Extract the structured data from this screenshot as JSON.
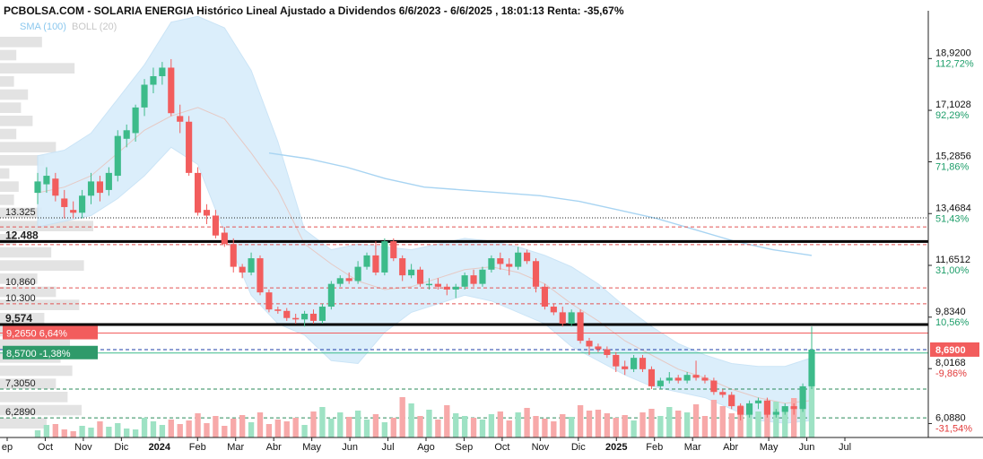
{
  "header": {
    "title": "PCBOLSA.COM - SOLARIA ENERGIA Histórico Lineal Ajustado a Dividendos 6/6/2023 - 6/6/2025 , 18:01:13 Renta: -35,67%"
  },
  "legend": {
    "sma": "SMA (100)",
    "boll": "BOLL (20)"
  },
  "colors": {
    "up": "#3dbb8a",
    "down": "#f25d5d",
    "band_fill": "#d8edfb",
    "sma": "#a8d4f2",
    "axis_green": "#1e9e6a",
    "axis_red": "#e23b3b",
    "dashed_red": "#e25555",
    "dashed_green": "#2a8a5a",
    "dashed_blue": "#1f3fa8",
    "volume_hist": "#e3e3e3"
  },
  "chart_data": {
    "type": "candlestick",
    "title": "PCBOLSA.COM - SOLARIA ENERGIA Histórico Lineal Ajustado a Dividendos 6/6/2023 - 6/6/2025 , 18:01:13 Renta: -35,67%",
    "ylim": [
      5.6,
      20.6
    ],
    "x_labels": [
      {
        "label": "ep",
        "bold": false
      },
      {
        "label": "Oct",
        "bold": false
      },
      {
        "label": "Nov",
        "bold": false
      },
      {
        "label": "Dic",
        "bold": false
      },
      {
        "label": "2024",
        "bold": true
      },
      {
        "label": "Feb",
        "bold": false
      },
      {
        "label": "Mar",
        "bold": false
      },
      {
        "label": "Abr",
        "bold": false
      },
      {
        "label": "May",
        "bold": false
      },
      {
        "label": "Jun",
        "bold": false
      },
      {
        "label": "Jul",
        "bold": false
      },
      {
        "label": "Ago",
        "bold": false
      },
      {
        "label": "Sep",
        "bold": false
      },
      {
        "label": "Oct",
        "bold": false
      },
      {
        "label": "Nov",
        "bold": false
      },
      {
        "label": "Dic",
        "bold": false
      },
      {
        "label": "2025",
        "bold": true
      },
      {
        "label": "Feb",
        "bold": false
      },
      {
        "label": "Mar",
        "bold": false
      },
      {
        "label": "Abr",
        "bold": false
      },
      {
        "label": "May",
        "bold": false
      },
      {
        "label": "Jun",
        "bold": false
      },
      {
        "label": "Jul",
        "bold": false
      }
    ],
    "right_axis": [
      {
        "price": "18,9200",
        "pct": "112,72%",
        "value": 18.92,
        "pct_color": "green"
      },
      {
        "price": "17,1028",
        "pct": "92,29%",
        "value": 17.1,
        "pct_color": "green"
      },
      {
        "price": "15,2856",
        "pct": "71,86%",
        "value": 15.29,
        "pct_color": "green"
      },
      {
        "price": "13,4684",
        "pct": "51,43%",
        "value": 13.47,
        "pct_color": "green"
      },
      {
        "price": "11,6512",
        "pct": "31,00%",
        "value": 11.65,
        "pct_color": "green"
      },
      {
        "price": "9,8340",
        "pct": "10,56%",
        "value": 9.83,
        "pct_color": "green"
      },
      {
        "price": "8,0168",
        "pct": "-9,86%",
        "value": 8.02,
        "pct_color": "red"
      },
      {
        "price": "6,0880",
        "pct": "-31,54%",
        "value": 6.09,
        "pct_color": "red"
      }
    ],
    "last_price": {
      "label": "8,6900",
      "value": 8.69
    },
    "left_levels": [
      {
        "label": "13.325",
        "value": 13.32,
        "style": "dotted-black"
      },
      {
        "label": "12.488",
        "value": 12.49,
        "style": "thick-black"
      },
      {
        "label": "10,860",
        "value": 10.86,
        "style": "dashed-red"
      },
      {
        "label": "10.300",
        "value": 10.3,
        "style": "dashed-red"
      },
      {
        "label": "9,574",
        "value": 9.57,
        "style": "thick-black"
      },
      {
        "label": "7,3050",
        "value": 7.3,
        "style": "dashed-green"
      },
      {
        "label": "6,2890",
        "value": 6.29,
        "style": "dashed-green"
      }
    ],
    "badges": [
      {
        "text": "9,2650  6,64%",
        "value": 9.27,
        "color": "red"
      },
      {
        "text": "8,5700  -1,38%",
        "value": 8.57,
        "color": "green"
      }
    ],
    "extra_lines": [
      {
        "value": 13.0,
        "style": "dashed-red"
      },
      {
        "value": 12.38,
        "style": "dashed-red"
      },
      {
        "value": 9.27,
        "style": "solid-red"
      },
      {
        "value": 8.69,
        "style": "dashed-blue"
      },
      {
        "value": 8.57,
        "style": "solid-green"
      }
    ],
    "candles": [
      [
        14.2,
        14.9,
        13.8,
        14.6
      ],
      [
        14.5,
        15.1,
        14.2,
        14.8
      ],
      [
        14.7,
        14.9,
        13.9,
        14.1
      ],
      [
        14.0,
        14.3,
        13.3,
        13.7
      ],
      [
        13.6,
        13.9,
        13.3,
        13.5
      ],
      [
        13.5,
        14.3,
        13.3,
        14.1
      ],
      [
        14.1,
        14.9,
        13.8,
        14.6
      ],
      [
        14.6,
        14.8,
        13.9,
        14.2
      ],
      [
        14.3,
        15.1,
        14.1,
        14.9
      ],
      [
        14.8,
        16.4,
        14.6,
        16.2
      ],
      [
        16.1,
        16.6,
        15.8,
        16.4
      ],
      [
        16.3,
        17.3,
        16.0,
        17.2
      ],
      [
        17.2,
        18.2,
        16.9,
        18.0
      ],
      [
        18.0,
        18.6,
        17.7,
        18.3
      ],
      [
        18.3,
        18.8,
        18.0,
        18.6
      ],
      [
        18.6,
        18.9,
        16.9,
        17.0
      ],
      [
        16.9,
        17.3,
        16.3,
        16.7
      ],
      [
        16.7,
        16.9,
        14.8,
        14.9
      ],
      [
        14.9,
        15.1,
        13.4,
        13.5
      ],
      [
        13.6,
        13.8,
        13.1,
        13.4
      ],
      [
        13.4,
        13.6,
        12.6,
        12.7
      ],
      [
        12.8,
        13.0,
        12.3,
        12.4
      ],
      [
        12.4,
        12.6,
        11.4,
        11.6
      ],
      [
        11.6,
        11.7,
        11.2,
        11.4
      ],
      [
        11.4,
        12.1,
        11.3,
        11.9
      ],
      [
        11.9,
        12.0,
        10.6,
        10.7
      ],
      [
        10.7,
        10.8,
        10.0,
        10.1
      ],
      [
        10.1,
        10.2,
        9.95,
        10.05
      ],
      [
        10.05,
        10.15,
        9.7,
        9.8
      ],
      [
        9.8,
        9.95,
        9.6,
        9.75
      ],
      [
        9.75,
        10.05,
        9.5,
        9.95
      ],
      [
        9.95,
        10.1,
        9.6,
        9.7
      ],
      [
        9.7,
        10.3,
        9.6,
        10.2
      ],
      [
        10.2,
        11.1,
        10.1,
        11.0
      ],
      [
        11.0,
        11.3,
        10.9,
        11.2
      ],
      [
        11.2,
        11.4,
        11.0,
        11.1
      ],
      [
        11.1,
        11.8,
        11.0,
        11.6
      ],
      [
        11.6,
        12.1,
        11.5,
        12.0
      ],
      [
        12.0,
        12.5,
        11.3,
        11.4
      ],
      [
        11.4,
        12.6,
        11.3,
        12.5
      ],
      [
        12.5,
        12.6,
        11.8,
        11.9
      ],
      [
        11.9,
        12.0,
        11.1,
        11.3
      ],
      [
        11.3,
        11.7,
        11.2,
        11.5
      ],
      [
        11.5,
        11.6,
        10.9,
        11.0
      ],
      [
        11.0,
        11.2,
        10.8,
        11.0
      ],
      [
        11.0,
        11.2,
        10.8,
        10.9
      ],
      [
        10.9,
        11.0,
        10.6,
        10.8
      ],
      [
        10.8,
        11.0,
        10.5,
        10.9
      ],
      [
        10.9,
        11.4,
        10.8,
        11.3
      ],
      [
        11.3,
        11.5,
        10.9,
        11.0
      ],
      [
        11.0,
        11.6,
        10.9,
        11.5
      ],
      [
        11.5,
        12.0,
        11.4,
        11.9
      ],
      [
        11.9,
        12.1,
        11.5,
        11.7
      ],
      [
        11.7,
        11.9,
        11.3,
        11.6
      ],
      [
        11.6,
        12.3,
        11.5,
        12.1
      ],
      [
        12.1,
        12.2,
        11.7,
        11.8
      ],
      [
        11.8,
        11.9,
        10.7,
        10.9
      ],
      [
        10.9,
        11.0,
        10.1,
        10.2
      ],
      [
        10.2,
        10.3,
        9.9,
        10.0
      ],
      [
        10.0,
        10.2,
        9.5,
        9.6
      ],
      [
        9.6,
        10.1,
        9.5,
        10.0
      ],
      [
        10.0,
        10.1,
        8.9,
        9.0
      ],
      [
        9.0,
        9.1,
        8.5,
        8.8
      ],
      [
        8.8,
        8.9,
        8.6,
        8.7
      ],
      [
        8.7,
        8.8,
        8.4,
        8.5
      ],
      [
        8.5,
        8.6,
        7.9,
        8.1
      ],
      [
        8.1,
        8.3,
        7.8,
        8.0
      ],
      [
        8.0,
        8.5,
        7.9,
        8.4
      ],
      [
        8.4,
        8.5,
        7.9,
        8.0
      ],
      [
        8.0,
        8.1,
        7.3,
        7.4
      ],
      [
        7.4,
        7.7,
        7.3,
        7.6
      ],
      [
        7.6,
        7.9,
        7.5,
        7.7
      ],
      [
        7.7,
        7.8,
        7.5,
        7.6
      ],
      [
        7.6,
        7.9,
        7.5,
        7.8
      ],
      [
        7.8,
        8.3,
        7.6,
        7.7
      ],
      [
        7.7,
        7.8,
        7.5,
        7.6
      ],
      [
        7.6,
        7.7,
        7.1,
        7.2
      ],
      [
        7.2,
        7.3,
        7.0,
        7.1
      ],
      [
        7.1,
        7.2,
        6.6,
        6.7
      ],
      [
        6.7,
        6.8,
        6.2,
        6.4
      ],
      [
        6.4,
        6.9,
        6.3,
        6.8
      ],
      [
        6.8,
        7.0,
        6.6,
        6.9
      ],
      [
        6.9,
        7.0,
        6.3,
        6.4
      ],
      [
        6.4,
        6.6,
        6.3,
        6.5
      ],
      [
        6.5,
        6.8,
        6.4,
        6.7
      ],
      [
        6.7,
        6.8,
        6.4,
        6.6
      ],
      [
        6.6,
        7.5,
        6.5,
        7.4
      ],
      [
        7.4,
        9.5,
        7.3,
        8.69
      ]
    ],
    "bollinger_upper": [
      15.5,
      15.7,
      16.3,
      17.5,
      18.7,
      20.2,
      20.4,
      20.0,
      18.5,
      16.0,
      12.9,
      12.2,
      12.4,
      12.3,
      12.2,
      12.4,
      12.6,
      12.5,
      12.3,
      12.0,
      11.6,
      11.0,
      10.2,
      9.5,
      8.9,
      8.5,
      8.2,
      8.1,
      8.1,
      8.4
    ],
    "bollinger_lower": [
      13.0,
      13.2,
      13.4,
      14.0,
      14.8,
      15.8,
      15.2,
      12.8,
      10.6,
      9.6,
      9.2,
      8.3,
      8.2,
      9.3,
      10.0,
      10.3,
      10.6,
      10.4,
      10.0,
      9.6,
      8.8,
      8.3,
      7.8,
      7.4,
      7.2,
      7.0,
      6.6,
      6.2,
      6.1,
      6.2
    ],
    "bollinger_mid": [
      14.2,
      14.4,
      14.8,
      15.6,
      16.4,
      16.9,
      17.2,
      16.8,
      15.6,
      14.3,
      12.4,
      11.7,
      11.1,
      10.8,
      10.9,
      11.2,
      11.5,
      11.6,
      11.4,
      11.0,
      10.3,
      9.7,
      9.0,
      8.5,
      8.0,
      7.7,
      7.3,
      7.0,
      6.8,
      6.9
    ],
    "sma": [
      15.6,
      15.4,
      15.1,
      14.7,
      14.4,
      14.3,
      14.2,
      14.1,
      13.9,
      13.6,
      13.3,
      12.9,
      12.5,
      12.2,
      12.0
    ],
    "volume": [
      0.08,
      0.14,
      0.15,
      0.09,
      0.07,
      0.13,
      0.11,
      0.18,
      0.12,
      0.16,
      0.1,
      0.09,
      0.22,
      0.18,
      0.14,
      0.2,
      0.15,
      0.19,
      0.27,
      0.16,
      0.24,
      0.13,
      0.21,
      0.25,
      0.17,
      0.28,
      0.15,
      0.2,
      0.18,
      0.22,
      0.14,
      0.29,
      0.34,
      0.21,
      0.28,
      0.23,
      0.3,
      0.2,
      0.26,
      0.17,
      0.22,
      0.45,
      0.38,
      0.24,
      0.31,
      0.2,
      0.36,
      0.27,
      0.24,
      0.22,
      0.2,
      0.26,
      0.29,
      0.19,
      0.28,
      0.33,
      0.24,
      0.21,
      0.18,
      0.26,
      0.23,
      0.36,
      0.3,
      0.31,
      0.27,
      0.22,
      0.25,
      0.19,
      0.28,
      0.32,
      0.24,
      0.34,
      0.3,
      0.28,
      0.37,
      0.24,
      0.42,
      0.35,
      0.27,
      0.36,
      0.31,
      0.29,
      0.33,
      0.4,
      0.35,
      0.44,
      0.51,
      0.9
    ],
    "volume_hist": [
      0.18,
      0.07,
      0.32,
      0.06,
      0.12,
      0.09,
      0.14,
      0.07,
      0.24,
      0.19,
      0.04,
      0.08,
      0.06,
      0.18,
      0.4,
      0.07,
      0.22,
      0.36,
      0.16,
      0.24,
      0.34,
      0.19,
      0.27,
      0.3,
      0.26,
      0.31,
      0.24,
      0.29,
      0.35,
      0.2
    ]
  }
}
